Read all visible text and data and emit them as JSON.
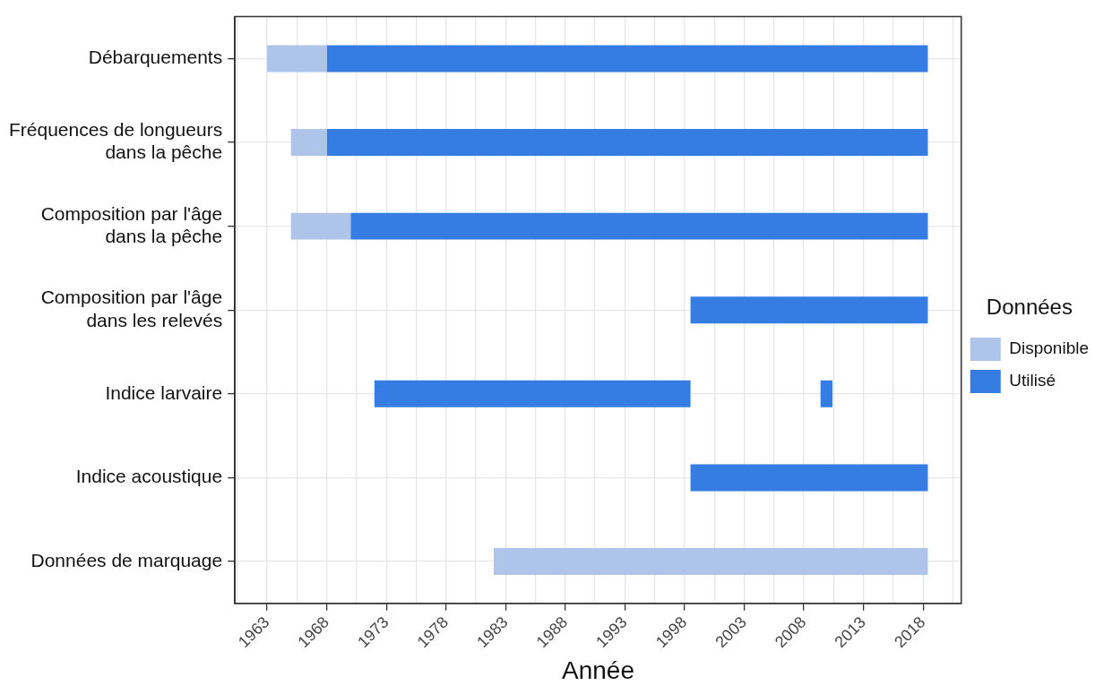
{
  "chart_data": {
    "type": "bar",
    "orientation": "horizontal",
    "xlabel": "Année",
    "legend_title": "Données",
    "legend": "right",
    "grid": true,
    "categories": [
      "Débarquements",
      "Fréquences de longueurs dans la pêche",
      "Composition par l'âge dans la pêche",
      "Composition par l'âge dans les relevés",
      "Indice larvaire",
      "Indice acoustique",
      "Données de marquage"
    ],
    "series": [
      {
        "name": "Disponible",
        "color": "#aec4e8",
        "base": [
          1963,
          1965,
          1965,
          null,
          null,
          null,
          1982
        ],
        "values": [
          5,
          3,
          5,
          null,
          null,
          null,
          36.4
        ]
      },
      {
        "name": "Utilisé",
        "color": "#357de3",
        "base": [
          1968,
          1968,
          1970,
          1998.5,
          1972,
          1998.5,
          null
        ],
        "values": [
          50.4,
          50.4,
          48.4,
          19.9,
          26.5,
          19.9,
          null
        ]
      },
      {
        "color": "#357de3",
        "base": [
          null,
          null,
          null,
          null,
          2009.4,
          null,
          null
        ],
        "values": [
          null,
          null,
          null,
          null,
          1,
          null,
          null
        ]
      }
    ],
    "xlim": [
      1960.3,
      2021.2
    ],
    "xticks": [
      {
        "value": 1960.5,
        "label": null
      },
      1963,
      {
        "value": 1965.5,
        "label": null
      },
      1968,
      {
        "value": 1970.5,
        "label": null
      },
      1973,
      {
        "value": 1975.5,
        "label": null
      },
      1978,
      {
        "value": 1980.5,
        "label": null
      },
      1983,
      {
        "value": 1985.5,
        "label": null
      },
      1988,
      {
        "value": 1990.5,
        "label": null
      },
      1993,
      {
        "value": 1995.5,
        "label": null
      },
      1998,
      {
        "value": 2000.5,
        "label": null
      },
      2003,
      {
        "value": 2005.5,
        "label": null
      },
      2008,
      {
        "value": 2010.5,
        "label": null
      },
      2013,
      {
        "value": 2015.5,
        "label": null
      },
      2018,
      {
        "value": 2020.5,
        "label": null
      }
    ]
  }
}
